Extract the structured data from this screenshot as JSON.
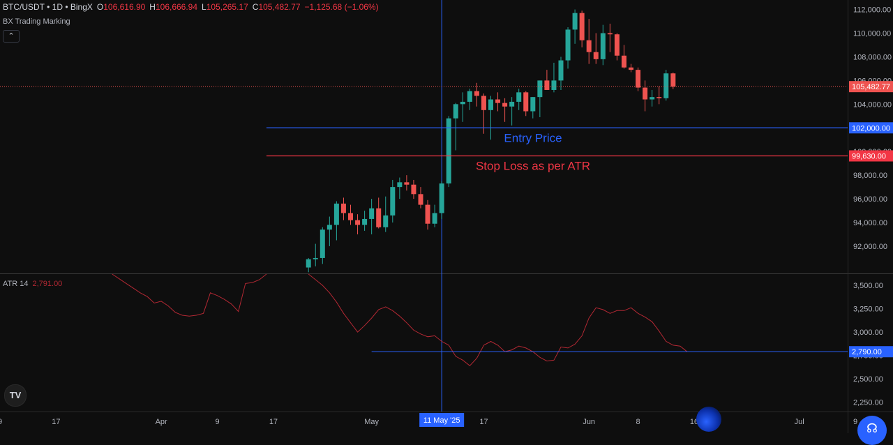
{
  "header": {
    "symbol": "BTC/USDT • 1D • BingX",
    "open_label": "O",
    "open": "106,616.90",
    "high_label": "H",
    "high": "106,666.94",
    "low_label": "L",
    "low": "105,265.17",
    "close_label": "C",
    "close": "105,482.77",
    "change": "−1,125.68 (−1.06%)",
    "indicator_name": "BX Trading Marking",
    "collapse_icon": "chevron-up-icon"
  },
  "atr_legend": {
    "name": "ATR 14",
    "value": "2,791.00"
  },
  "colors": {
    "background": "#0e0e0e",
    "up": "#26a69a",
    "down": "#ef5350",
    "entry_line": "#2962ff",
    "stop_line": "#f23645",
    "atr_line": "#b22833",
    "crosshair": "#2962ff"
  },
  "chart_data": [
    {
      "type": "candlestick",
      "title": "BTC/USDT • 1D • BingX",
      "ylim": [
        89700,
        112800
      ],
      "y_ticks": [
        "92,000.00",
        "94,000.00",
        "96,000.00",
        "98,000.00",
        "100,000.00",
        "102,000.00",
        "104,000.00",
        "106,000.00",
        "108,000.00",
        "110,000.00",
        "112,000.00"
      ],
      "y_tick_values": [
        92000,
        94000,
        96000,
        98000,
        100000,
        102000,
        104000,
        106000,
        108000,
        110000,
        112000
      ],
      "x_ticks": [
        {
          "label": "9",
          "day": 0
        },
        {
          "label": "17",
          "day": 8
        },
        {
          "label": "Apr",
          "day": 23
        },
        {
          "label": "9",
          "day": 31
        },
        {
          "label": "17",
          "day": 39
        },
        {
          "label": "May",
          "day": 53
        },
        {
          "label": "17",
          "day": 69
        },
        {
          "label": "Jun",
          "day": 84
        },
        {
          "label": "8",
          "day": 91
        },
        {
          "label": "16",
          "day": 99
        },
        {
          "label": "Jul",
          "day": 114
        },
        {
          "label": "9",
          "day": 122
        }
      ],
      "crosshair": {
        "label": "11 May '25",
        "day": 63
      },
      "candles": [
        {
          "day": 44,
          "o": 90200,
          "h": 91000,
          "l": 89800,
          "c": 90900
        },
        {
          "day": 45,
          "o": 90900,
          "h": 92200,
          "l": 90300,
          "c": 91000
        },
        {
          "day": 46,
          "o": 91000,
          "h": 93600,
          "l": 90500,
          "c": 93400
        },
        {
          "day": 47,
          "o": 93400,
          "h": 94500,
          "l": 92000,
          "c": 93800
        },
        {
          "day": 48,
          "o": 93800,
          "h": 95800,
          "l": 92500,
          "c": 95600
        },
        {
          "day": 49,
          "o": 95600,
          "h": 96100,
          "l": 94200,
          "c": 94800
        },
        {
          "day": 50,
          "o": 94800,
          "h": 95500,
          "l": 93800,
          "c": 94200
        },
        {
          "day": 51,
          "o": 94200,
          "h": 94700,
          "l": 93000,
          "c": 93800
        },
        {
          "day": 52,
          "o": 93800,
          "h": 95000,
          "l": 93300,
          "c": 94300
        },
        {
          "day": 53,
          "o": 94300,
          "h": 96000,
          "l": 93000,
          "c": 95200
        },
        {
          "day": 54,
          "o": 95200,
          "h": 96100,
          "l": 93500,
          "c": 93600
        },
        {
          "day": 55,
          "o": 93600,
          "h": 96200,
          "l": 93200,
          "c": 94600
        },
        {
          "day": 56,
          "o": 94600,
          "h": 97600,
          "l": 94000,
          "c": 97000
        },
        {
          "day": 57,
          "o": 97000,
          "h": 97800,
          "l": 96000,
          "c": 97400
        },
        {
          "day": 58,
          "o": 97400,
          "h": 98000,
          "l": 96700,
          "c": 97200
        },
        {
          "day": 59,
          "o": 97200,
          "h": 97600,
          "l": 96000,
          "c": 96400
        },
        {
          "day": 60,
          "o": 96400,
          "h": 97000,
          "l": 95200,
          "c": 95500
        },
        {
          "day": 61,
          "o": 95500,
          "h": 95900,
          "l": 93400,
          "c": 93900
        },
        {
          "day": 62,
          "o": 93900,
          "h": 95500,
          "l": 93600,
          "c": 94800
        },
        {
          "day": 63,
          "o": 94800,
          "h": 97500,
          "l": 94300,
          "c": 97300
        },
        {
          "day": 64,
          "o": 97300,
          "h": 103000,
          "l": 97000,
          "c": 102800
        },
        {
          "day": 65,
          "o": 102800,
          "h": 104100,
          "l": 100100,
          "c": 104000
        },
        {
          "day": 66,
          "o": 104000,
          "h": 105000,
          "l": 102500,
          "c": 104200
        },
        {
          "day": 67,
          "o": 104200,
          "h": 105300,
          "l": 103500,
          "c": 105100
        },
        {
          "day": 68,
          "o": 105100,
          "h": 105800,
          "l": 103800,
          "c": 104700
        },
        {
          "day": 69,
          "o": 104700,
          "h": 104900,
          "l": 101500,
          "c": 103500
        },
        {
          "day": 70,
          "o": 103500,
          "h": 104700,
          "l": 101000,
          "c": 104400
        },
        {
          "day": 71,
          "o": 104400,
          "h": 105000,
          "l": 103400,
          "c": 104100
        },
        {
          "day": 72,
          "o": 104100,
          "h": 104500,
          "l": 102500,
          "c": 103800
        },
        {
          "day": 73,
          "o": 103800,
          "h": 104600,
          "l": 102200,
          "c": 104200
        },
        {
          "day": 74,
          "o": 104200,
          "h": 105300,
          "l": 103500,
          "c": 105000
        },
        {
          "day": 75,
          "o": 105000,
          "h": 105100,
          "l": 103000,
          "c": 103400
        },
        {
          "day": 76,
          "o": 103400,
          "h": 104600,
          "l": 102800,
          "c": 104600
        },
        {
          "day": 77,
          "o": 104600,
          "h": 106000,
          "l": 102900,
          "c": 106000
        },
        {
          "day": 78,
          "o": 106000,
          "h": 106900,
          "l": 105300,
          "c": 105200
        },
        {
          "day": 79,
          "o": 105200,
          "h": 107500,
          "l": 105000,
          "c": 106000
        },
        {
          "day": 80,
          "o": 106000,
          "h": 108000,
          "l": 105200,
          "c": 107700
        },
        {
          "day": 81,
          "o": 107700,
          "h": 110500,
          "l": 107000,
          "c": 110300
        },
        {
          "day": 82,
          "o": 110300,
          "h": 112000,
          "l": 109100,
          "c": 111700
        },
        {
          "day": 83,
          "o": 111700,
          "h": 111900,
          "l": 108800,
          "c": 109400
        },
        {
          "day": 84,
          "o": 109400,
          "h": 111200,
          "l": 107400,
          "c": 108400
        },
        {
          "day": 85,
          "o": 108400,
          "h": 110000,
          "l": 107400,
          "c": 107800
        },
        {
          "day": 86,
          "o": 107800,
          "h": 110700,
          "l": 107300,
          "c": 110000
        },
        {
          "day": 87,
          "o": 110000,
          "h": 110800,
          "l": 108400,
          "c": 109900
        },
        {
          "day": 88,
          "o": 109900,
          "h": 110000,
          "l": 107700,
          "c": 108100
        },
        {
          "day": 89,
          "o": 108100,
          "h": 109000,
          "l": 107000,
          "c": 107100
        },
        {
          "day": 90,
          "o": 107100,
          "h": 107400,
          "l": 106700,
          "c": 106900
        },
        {
          "day": 91,
          "o": 106900,
          "h": 107100,
          "l": 105100,
          "c": 105400
        },
        {
          "day": 92,
          "o": 105400,
          "h": 106000,
          "l": 103400,
          "c": 104400
        },
        {
          "day": 93,
          "o": 104400,
          "h": 105200,
          "l": 103800,
          "c": 104600
        },
        {
          "day": 94,
          "o": 104600,
          "h": 105500,
          "l": 104000,
          "c": 104500
        },
        {
          "day": 95,
          "o": 104500,
          "h": 106900,
          "l": 104300,
          "c": 106600
        },
        {
          "day": 96,
          "o": 106600,
          "h": 106670,
          "l": 105270,
          "c": 105480
        }
      ],
      "hlines": [
        {
          "value": 102000,
          "label": "102,000.00",
          "text": "Entry Price",
          "color": "#2962ff",
          "start_day": 38
        },
        {
          "value": 99630,
          "label": "99,630.00",
          "text": "Stop Loss as per ATR",
          "color": "#f23645",
          "start_day": 38
        }
      ],
      "last_price": {
        "value": 105482.77,
        "label": "105,482.77"
      }
    },
    {
      "type": "line",
      "title": "ATR 14",
      "ylim": [
        2150,
        3620
      ],
      "y_ticks": [
        "2,250.00",
        "2,500.00",
        "2,750.00",
        "3,000.00",
        "3,250.00",
        "3,500.00"
      ],
      "y_tick_values": [
        2250,
        2500,
        2750,
        3000,
        3250,
        3500
      ],
      "series": [
        {
          "name": "ATR 14",
          "points": [
            [
              16,
              3620
            ],
            [
              17,
              3570
            ],
            [
              18,
              3520
            ],
            [
              19,
              3470
            ],
            [
              20,
              3420
            ],
            [
              21,
              3380
            ],
            [
              22,
              3310
            ],
            [
              23,
              3330
            ],
            [
              24,
              3280
            ],
            [
              25,
              3210
            ],
            [
              26,
              3180
            ],
            [
              27,
              3170
            ],
            [
              28,
              3180
            ],
            [
              29,
              3200
            ],
            [
              30,
              3420
            ],
            [
              31,
              3390
            ],
            [
              32,
              3350
            ],
            [
              33,
              3300
            ],
            [
              34,
              3220
            ],
            [
              35,
              3520
            ],
            [
              36,
              3530
            ],
            [
              37,
              3560
            ],
            [
              38,
              3620
            ],
            [
              44,
              3620
            ],
            [
              45,
              3560
            ],
            [
              46,
              3500
            ],
            [
              47,
              3420
            ],
            [
              48,
              3320
            ],
            [
              49,
              3200
            ],
            [
              50,
              3100
            ],
            [
              51,
              3000
            ],
            [
              52,
              3070
            ],
            [
              53,
              3150
            ],
            [
              54,
              3240
            ],
            [
              55,
              3270
            ],
            [
              56,
              3230
            ],
            [
              57,
              3170
            ],
            [
              58,
              3100
            ],
            [
              59,
              3020
            ],
            [
              60,
              2980
            ],
            [
              61,
              2950
            ],
            [
              62,
              2960
            ],
            [
              63,
              2900
            ],
            [
              64,
              2860
            ],
            [
              65,
              2740
            ],
            [
              66,
              2700
            ],
            [
              67,
              2640
            ],
            [
              68,
              2720
            ],
            [
              69,
              2860
            ],
            [
              70,
              2900
            ],
            [
              71,
              2860
            ],
            [
              72,
              2790
            ],
            [
              73,
              2810
            ],
            [
              74,
              2850
            ],
            [
              75,
              2830
            ],
            [
              76,
              2790
            ],
            [
              77,
              2730
            ],
            [
              78,
              2690
            ],
            [
              79,
              2700
            ],
            [
              80,
              2840
            ],
            [
              81,
              2830
            ],
            [
              82,
              2870
            ],
            [
              83,
              2960
            ],
            [
              84,
              3150
            ],
            [
              85,
              3260
            ],
            [
              86,
              3240
            ],
            [
              87,
              3200
            ],
            [
              88,
              3230
            ],
            [
              89,
              3230
            ],
            [
              90,
              3260
            ],
            [
              91,
              3200
            ],
            [
              92,
              3160
            ],
            [
              93,
              3110
            ],
            [
              94,
              3010
            ],
            [
              95,
              2900
            ],
            [
              96,
              2860
            ],
            [
              97,
              2850
            ],
            [
              98,
              2790
            ]
          ]
        }
      ],
      "hline": {
        "value": 2790,
        "label": "2,790.00",
        "color": "#2962ff",
        "start_day": 53
      }
    }
  ],
  "help_icon": "headset-icon",
  "logo_text": "TV"
}
